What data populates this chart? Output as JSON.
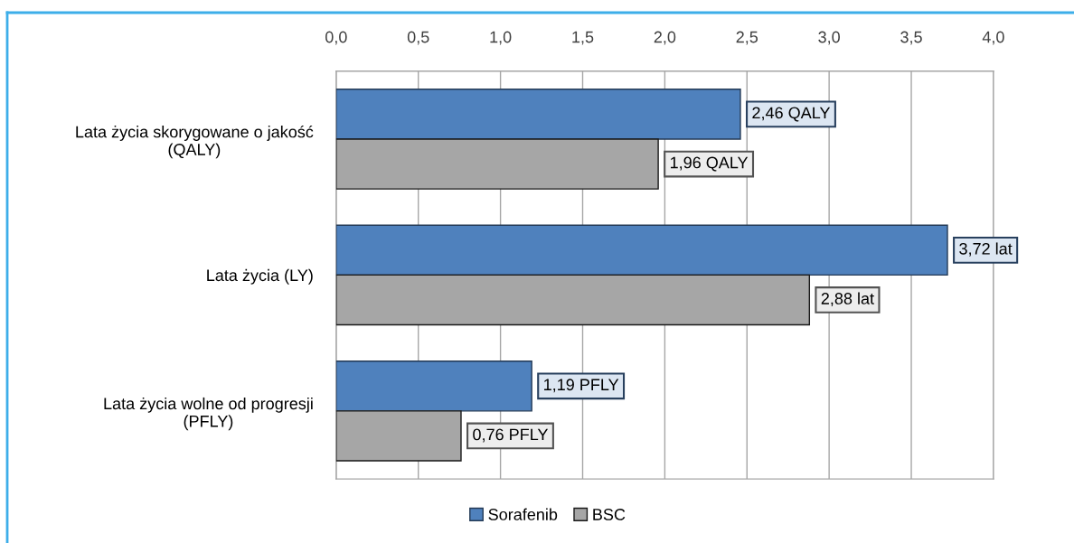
{
  "chart_data": {
    "type": "bar",
    "orientation": "horizontal",
    "categories": [
      "Lata życia skorygowane o jakość\n(QALY)",
      "Lata życia (LY)",
      "Lata życia wolne od progresji\n(PFLY)"
    ],
    "series": [
      {
        "name": "Sorafenib",
        "color": "#4f81bd",
        "values": [
          2.46,
          3.72,
          1.19
        ],
        "value_labels": [
          "2,46 QALY",
          "3,72 lat",
          "1,19 PFLY"
        ]
      },
      {
        "name": "BSC",
        "color": "#a6a6a6",
        "values": [
          1.96,
          2.88,
          0.76
        ],
        "value_labels": [
          "1,96 QALY",
          "2,88 lat",
          "0,76 PFLY"
        ]
      }
    ],
    "xlim": [
      0,
      4
    ],
    "xticks": [
      {
        "value": 0,
        "label": "0,0"
      },
      {
        "value": 0.5,
        "label": "0,5"
      },
      {
        "value": 1,
        "label": "1,0"
      },
      {
        "value": 1.5,
        "label": "1,5"
      },
      {
        "value": 2,
        "label": "2,0"
      },
      {
        "value": 2.5,
        "label": "2,5"
      },
      {
        "value": 3,
        "label": "3,0"
      },
      {
        "value": 3.5,
        "label": "3,5"
      },
      {
        "value": 4,
        "label": "4,0"
      }
    ],
    "grid": "x",
    "legend": "bottom"
  }
}
